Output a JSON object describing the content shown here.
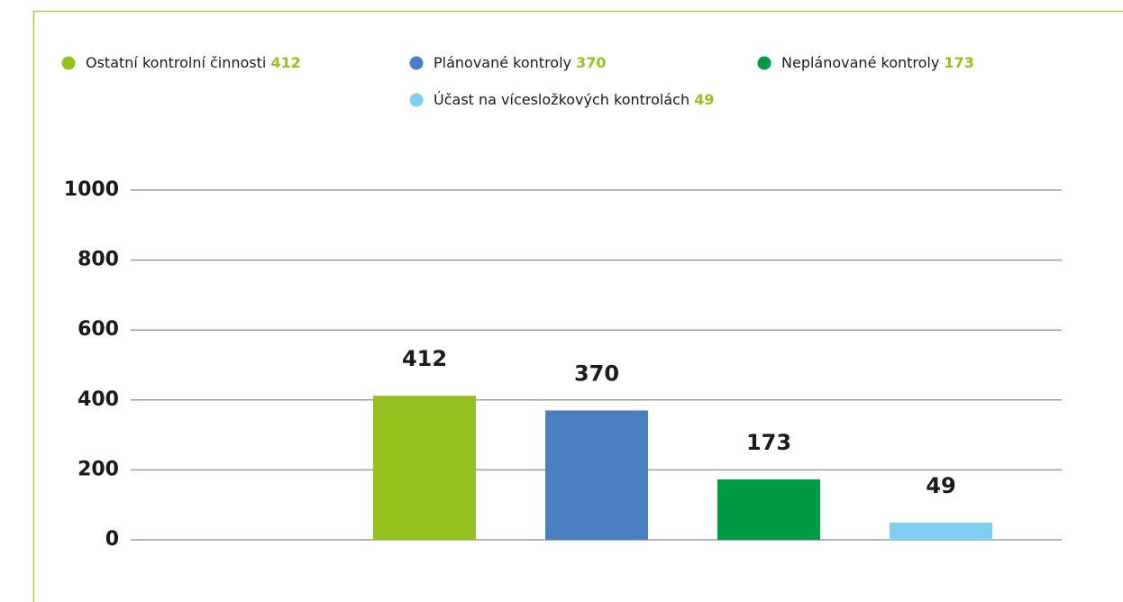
{
  "chart_data": {
    "type": "bar",
    "series": [
      {
        "name": "Ostatní kontrolní činnosti",
        "color": "#95c11f",
        "values": [
          412
        ]
      },
      {
        "name": "Plánované kontroly",
        "color": "#4a7fc1",
        "values": [
          370
        ]
      },
      {
        "name": "Neplánované kontroly",
        "color": "#009a44",
        "values": [
          173
        ]
      },
      {
        "name": "Účast na vícesložkových kontrolách",
        "color": "#80cdf2",
        "values": [
          49
        ]
      }
    ],
    "ylim": [
      0,
      1000
    ],
    "yticks": [
      0,
      200,
      400,
      600,
      800,
      1000
    ],
    "grid": true
  }
}
